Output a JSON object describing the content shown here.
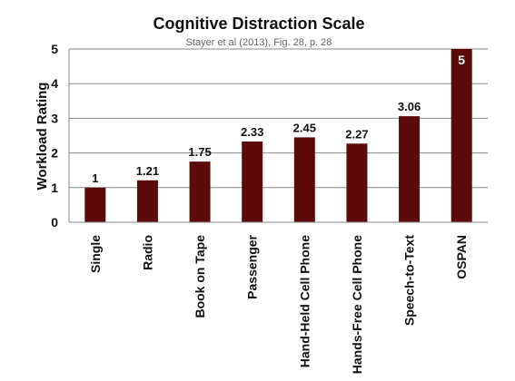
{
  "chart_data": {
    "type": "bar",
    "title": "Cognitive Distraction Scale",
    "subtitle": "Stayer et al (2013), Fig. 28, p. 28",
    "xlabel": "",
    "ylabel": "Workload Rating",
    "ylim": [
      0,
      5
    ],
    "yticks": [
      "0",
      "1",
      "2",
      "3",
      "4",
      "5"
    ],
    "grid": true,
    "categories": [
      "Single",
      "Radio",
      "Book on Tape",
      "Passenger",
      "Hand-Held Cell Phone",
      "Hands-Free Cell Phone",
      "Speech-to-Text",
      "OSPAN"
    ],
    "values": [
      1,
      1.21,
      1.75,
      2.33,
      2.45,
      2.27,
      3.06,
      5
    ],
    "data_labels": [
      "1",
      "1.21",
      "1.75",
      "2.33",
      "2.45",
      "2.27",
      "3.06",
      "5"
    ],
    "bar_color": "#5c0a0a"
  }
}
